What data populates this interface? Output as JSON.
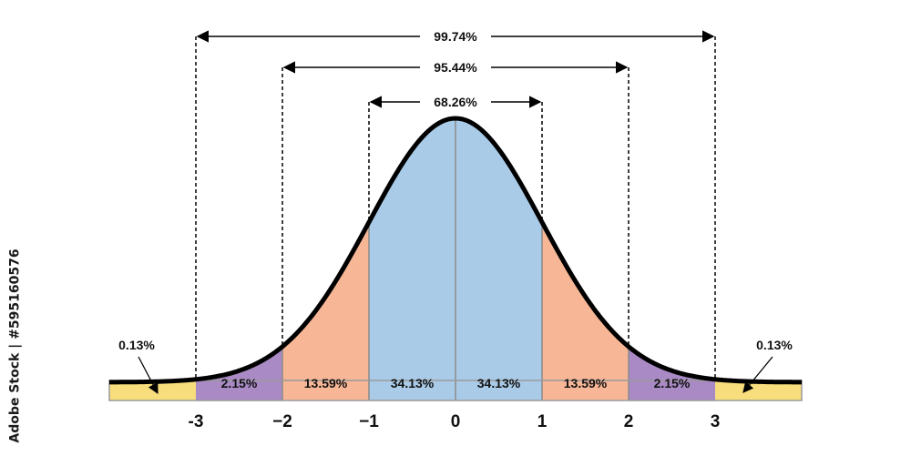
{
  "diagram": {
    "axis_ticks": [
      "-3",
      "−2",
      "−1",
      "0",
      "1",
      "2",
      "3"
    ],
    "regions": [
      {
        "label": "2.15%",
        "color": "#a98ac5"
      },
      {
        "label": "13.59%",
        "color": "#f7b797"
      },
      {
        "label": "34.13%",
        "color": "#a9cbe8"
      },
      {
        "label": "34.13%",
        "color": "#a9cbe8"
      },
      {
        "label": "13.59%",
        "color": "#f7b797"
      },
      {
        "label": "2.15%",
        "color": "#a98ac5"
      }
    ],
    "tails": {
      "left": "0.13%",
      "right": "0.13%",
      "color": "#f8dd7c"
    },
    "spans": [
      {
        "label": "68.26%",
        "from_sd": -1,
        "to_sd": 1
      },
      {
        "label": "95.44%",
        "from_sd": -2,
        "to_sd": 2
      },
      {
        "label": "99.74%",
        "from_sd": -3,
        "to_sd": 3
      }
    ],
    "curve_color": "#000000"
  },
  "watermark": {
    "stock_id": "Adobe Stock | #595160576"
  }
}
